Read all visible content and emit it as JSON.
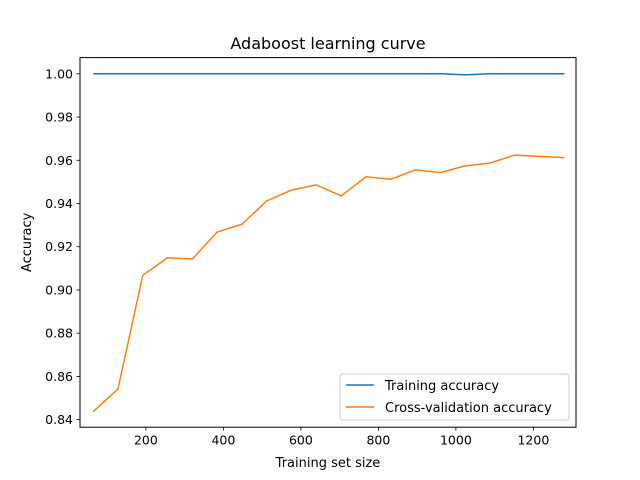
{
  "chart_data": {
    "type": "line",
    "title": "Adaboost learning curve",
    "xlabel": "Training set size",
    "ylabel": "Accuracy",
    "xlim": [
      30,
      1310
    ],
    "ylim": [
      0.8365,
      1.0075
    ],
    "x_ticks": [
      200,
      400,
      600,
      800,
      1000,
      1200
    ],
    "y_ticks": [
      0.84,
      0.86,
      0.88,
      0.9,
      0.92,
      0.94,
      0.96,
      0.98,
      1.0
    ],
    "x_tick_labels": [
      "200",
      "400",
      "600",
      "800",
      "1000",
      "1200"
    ],
    "y_tick_labels": [
      "0.84",
      "0.86",
      "0.88",
      "0.90",
      "0.92",
      "0.94",
      "0.96",
      "0.98",
      "1.00"
    ],
    "legend_position": "lower-right",
    "grid": false,
    "x": [
      64,
      128,
      192,
      256,
      320,
      384,
      448,
      512,
      576,
      640,
      704,
      768,
      832,
      896,
      960,
      1024,
      1088,
      1152,
      1216,
      1280
    ],
    "series": [
      {
        "name": "Training accuracy",
        "color": "#1f77b4",
        "values": [
          1.0,
          1.0,
          1.0,
          1.0,
          1.0,
          1.0,
          1.0,
          1.0,
          1.0,
          1.0,
          1.0,
          1.0,
          1.0,
          1.0,
          1.0,
          0.9995,
          1.0,
          1.0,
          1.0,
          1.0
        ]
      },
      {
        "name": "Cross-validation accuracy",
        "color": "#ff7f0e",
        "values": [
          0.8437,
          0.8542,
          0.9068,
          0.9149,
          0.9143,
          0.9268,
          0.9304,
          0.9412,
          0.9462,
          0.9486,
          0.9435,
          0.9524,
          0.9512,
          0.9556,
          0.9543,
          0.9574,
          0.9587,
          0.9624,
          0.9618,
          0.9612
        ]
      }
    ]
  }
}
